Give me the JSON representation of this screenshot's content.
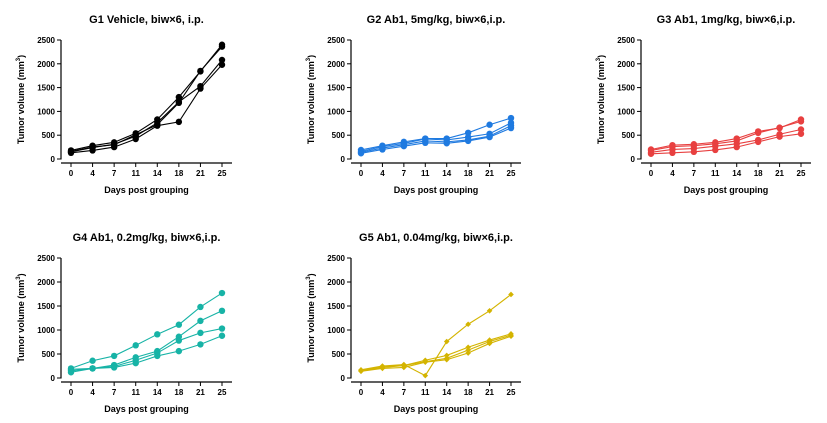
{
  "chart_data": [
    {
      "type": "line",
      "title": "G1 Vehicle, biw×6, i.p.",
      "xlabel": "Days post grouping",
      "ylabel_main": "Tumor volume (mm",
      "ylabel_sup": "3",
      "ylabel_end": ")",
      "x": [
        0,
        4,
        7,
        11,
        14,
        18,
        21,
        25
      ],
      "ylim": [
        0,
        2500
      ],
      "yticks": [
        0,
        500,
        1000,
        1500,
        2000,
        2500
      ],
      "color": "#000000",
      "marker": "circle",
      "series": [
        {
          "values": [
            180,
            280,
            350,
            540,
            830,
            1300,
            1840,
            2400
          ]
        },
        {
          "values": [
            150,
            240,
            310,
            480,
            760,
            1200,
            1530,
            2080
          ]
        },
        {
          "values": [
            130,
            180,
            250,
            420,
            700,
            780,
            1480,
            1980
          ]
        },
        {
          "values": [
            160,
            250,
            300,
            510,
            720,
            1180,
            1850,
            2360
          ]
        }
      ]
    },
    {
      "type": "line",
      "title": "G2 Ab1, 5mg/kg, biw×6,i.p.",
      "xlabel": "Days post grouping",
      "ylabel_main": "Tumor volume (mm",
      "ylabel_sup": "3",
      "ylabel_end": ")",
      "x": [
        0,
        4,
        7,
        11,
        14,
        18,
        21,
        25
      ],
      "ylim": [
        0,
        2500
      ],
      "yticks": [
        0,
        500,
        1000,
        1500,
        2000,
        2500
      ],
      "color": "#1f7ae0",
      "marker": "circle",
      "series": [
        {
          "values": [
            190,
            280,
            360,
            430,
            430,
            550,
            720,
            860
          ]
        },
        {
          "values": [
            160,
            260,
            330,
            420,
            400,
            460,
            530,
            760
          ]
        },
        {
          "values": [
            140,
            230,
            300,
            380,
            360,
            400,
            480,
            700
          ]
        },
        {
          "values": [
            120,
            200,
            270,
            340,
            330,
            380,
            460,
            650
          ]
        }
      ]
    },
    {
      "type": "line",
      "title": "G3 Ab1, 1mg/kg, biw×6,i.p.",
      "xlabel": "Days post grouping",
      "ylabel_main": "Tumor volume (mm",
      "ylabel_sup": "3",
      "ylabel_end": ")",
      "x": [
        0,
        4,
        7,
        11,
        14,
        18,
        21,
        25
      ],
      "ylim": [
        0,
        2500
      ],
      "yticks": [
        0,
        500,
        1000,
        1500,
        2000,
        2500
      ],
      "color": "#e84040",
      "marker": "circle",
      "series": [
        {
          "values": [
            200,
            290,
            310,
            350,
            430,
            580,
            650,
            830
          ]
        },
        {
          "values": [
            180,
            260,
            280,
            320,
            380,
            550,
            660,
            790
          ]
        },
        {
          "values": [
            140,
            200,
            220,
            270,
            320,
            400,
            520,
            620
          ]
        },
        {
          "values": [
            110,
            130,
            150,
            190,
            250,
            360,
            470,
            530
          ]
        }
      ]
    },
    {
      "type": "line",
      "title": "G4 Ab1, 0.2mg/kg, biw×6,i.p.",
      "xlabel": "Days post grouping",
      "ylabel_main": "Tumor volume (mm",
      "ylabel_sup": "3",
      "ylabel_end": ")",
      "x": [
        0,
        4,
        7,
        11,
        14,
        18,
        21,
        25
      ],
      "ylim": [
        0,
        2500
      ],
      "yticks": [
        0,
        500,
        1000,
        1500,
        2000,
        2500
      ],
      "color": "#17b3a6",
      "marker": "circle",
      "series": [
        {
          "values": [
            200,
            360,
            460,
            680,
            910,
            1110,
            1480,
            1770
          ]
        },
        {
          "values": [
            180,
            200,
            270,
            430,
            560,
            860,
            1190,
            1400
          ]
        },
        {
          "values": [
            150,
            200,
            240,
            370,
            520,
            780,
            940,
            1030
          ]
        },
        {
          "values": [
            120,
            200,
            220,
            310,
            460,
            560,
            700,
            880
          ]
        }
      ]
    },
    {
      "type": "line",
      "title": "G5 Ab1, 0.04mg/kg, biw×6,i.p.",
      "xlabel": "Days post grouping",
      "ylabel_main": "Tumor volume (mm",
      "ylabel_sup": "3",
      "ylabel_end": ")",
      "x": [
        0,
        4,
        7,
        11,
        14,
        18,
        21,
        25
      ],
      "ylim": [
        0,
        2500
      ],
      "yticks": [
        0,
        500,
        1000,
        1500,
        2000,
        2500
      ],
      "color": "#d4b400",
      "marker": "diamond",
      "series": [
        {
          "values": [
            170,
            250,
            280,
            50,
            760,
            1120,
            1400,
            1740
          ]
        },
        {
          "values": [
            160,
            240,
            260,
            370,
            470,
            640,
            790,
            920
          ]
        },
        {
          "values": [
            150,
            220,
            260,
            340,
            410,
            580,
            760,
            890
          ]
        },
        {
          "values": [
            140,
            200,
            220,
            330,
            380,
            520,
            720,
            870
          ]
        }
      ]
    }
  ]
}
